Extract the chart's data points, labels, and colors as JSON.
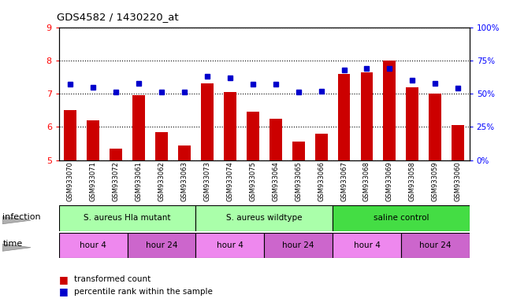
{
  "title": "GDS4582 / 1430220_at",
  "samples": [
    "GSM933070",
    "GSM933071",
    "GSM933072",
    "GSM933061",
    "GSM933062",
    "GSM933063",
    "GSM933073",
    "GSM933074",
    "GSM933075",
    "GSM933064",
    "GSM933065",
    "GSM933066",
    "GSM933067",
    "GSM933068",
    "GSM933069",
    "GSM933058",
    "GSM933059",
    "GSM933060"
  ],
  "bar_values": [
    6.5,
    6.2,
    5.35,
    6.95,
    5.85,
    5.45,
    7.3,
    7.05,
    6.45,
    6.25,
    5.55,
    5.8,
    7.6,
    7.65,
    8.0,
    7.2,
    7.0,
    6.05
  ],
  "dot_values": [
    57,
    55,
    51,
    58,
    51,
    51,
    63,
    62,
    57,
    57,
    51,
    52,
    68,
    69,
    69,
    60,
    58,
    54
  ],
  "ylim": [
    5,
    9
  ],
  "y2lim": [
    0,
    100
  ],
  "yticks": [
    5,
    6,
    7,
    8,
    9
  ],
  "y2ticks": [
    0,
    25,
    50,
    75,
    100
  ],
  "bar_color": "#cc0000",
  "dot_color": "#0000cc",
  "infection_groups": [
    {
      "label": "S. aureus Hla mutant",
      "start": 0,
      "end": 6,
      "color": "#aaffaa"
    },
    {
      "label": "S. aureus wildtype",
      "start": 6,
      "end": 12,
      "color": "#aaffaa"
    },
    {
      "label": "saline control",
      "start": 12,
      "end": 18,
      "color": "#44dd44"
    }
  ],
  "time_groups": [
    {
      "label": "hour 4",
      "start": 0,
      "end": 3,
      "color": "#ee88ee"
    },
    {
      "label": "hour 24",
      "start": 3,
      "end": 6,
      "color": "#cc66cc"
    },
    {
      "label": "hour 4",
      "start": 6,
      "end": 9,
      "color": "#ee88ee"
    },
    {
      "label": "hour 24",
      "start": 9,
      "end": 12,
      "color": "#cc66cc"
    },
    {
      "label": "hour 4",
      "start": 12,
      "end": 15,
      "color": "#ee88ee"
    },
    {
      "label": "hour 24",
      "start": 15,
      "end": 18,
      "color": "#cc66cc"
    }
  ],
  "xlabel_infection": "infection",
  "xlabel_time": "time",
  "legend_bar": "transformed count",
  "legend_dot": "percentile rank within the sample"
}
